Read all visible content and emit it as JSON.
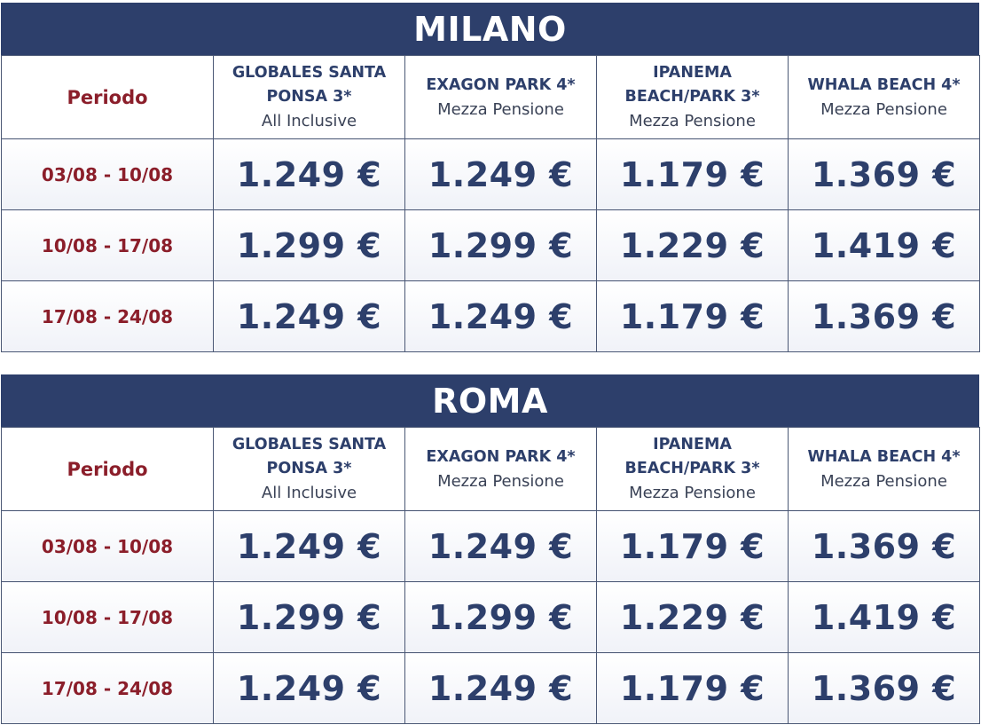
{
  "columns": {
    "period_header": "Periodo",
    "hotels": [
      {
        "name_line1": "GLOBALES SANTA",
        "name_line2": "PONSA 3*",
        "board": "All Inclusive"
      },
      {
        "name_line1": "EXAGON PARK 4*",
        "name_line2": "",
        "board": "Mezza Pensione"
      },
      {
        "name_line1": "IPANEMA",
        "name_line2": "BEACH/PARK 3*",
        "board": "Mezza Pensione"
      },
      {
        "name_line1": "WHALA BEACH 4*",
        "name_line2": "",
        "board": "Mezza Pensione"
      }
    ]
  },
  "tables": [
    {
      "city": "MILANO",
      "rows": [
        {
          "period": "03/08 - 10/08",
          "prices": [
            "1.249 €",
            "1.249 €",
            "1.179 €",
            "1.369 €"
          ]
        },
        {
          "period": "10/08 - 17/08",
          "prices": [
            "1.299 €",
            "1.299 €",
            "1.229 €",
            "1.419 €"
          ]
        },
        {
          "period": "17/08 - 24/08",
          "prices": [
            "1.249 €",
            "1.249 €",
            "1.179 €",
            "1.369 €"
          ]
        }
      ]
    },
    {
      "city": "ROMA",
      "rows": [
        {
          "period": "03/08 - 10/08",
          "prices": [
            "1.249 €",
            "1.249 €",
            "1.179 €",
            "1.369 €"
          ]
        },
        {
          "period": "10/08 - 17/08",
          "prices": [
            "1.299 €",
            "1.299 €",
            "1.229 €",
            "1.419 €"
          ]
        },
        {
          "period": "17/08 - 24/08",
          "prices": [
            "1.249 €",
            "1.249 €",
            "1.179 €",
            "1.369 €"
          ]
        }
      ]
    }
  ],
  "colors": {
    "header_navy": "#2d3f6b",
    "period_red": "#8b1e2a",
    "price_navy": "#2d3f6b"
  }
}
